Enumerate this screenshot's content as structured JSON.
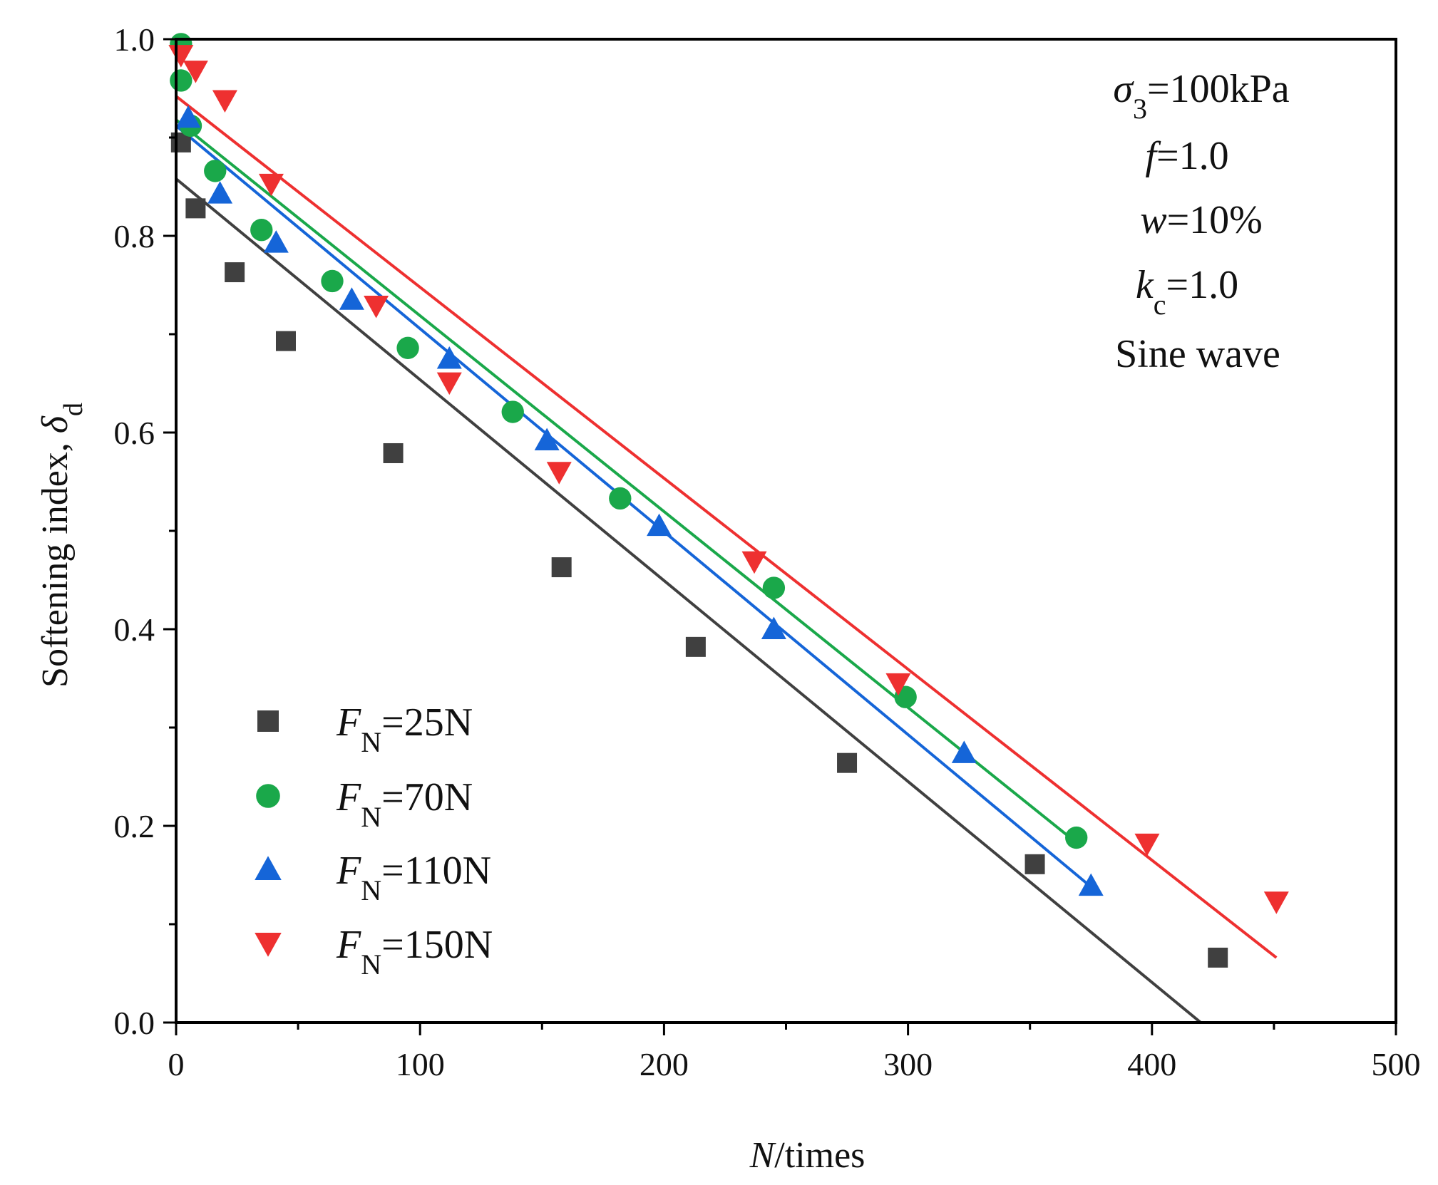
{
  "chart_data": {
    "type": "scatter",
    "title": "",
    "xlabel": {
      "italic": "N",
      "rest": "/times"
    },
    "ylabel": {
      "text": "Softening index, ",
      "symbol": "δ",
      "sub": "d"
    },
    "xlim": [
      0,
      500
    ],
    "ylim": [
      0,
      1.0
    ],
    "xticks": [
      0,
      100,
      200,
      300,
      400,
      500
    ],
    "xtick_labels": [
      "0",
      "100",
      "200",
      "300",
      "400",
      "500"
    ],
    "yticks": [
      0,
      0.2,
      0.4,
      0.6,
      0.8,
      1.0
    ],
    "ytick_labels": [
      "0.0",
      "0.2",
      "0.4",
      "0.6",
      "0.8",
      "1.0"
    ],
    "grid": false,
    "legend_position": "bottom-left",
    "annotations": [
      {
        "italic": "σ",
        "sub": "3",
        "rest": "=100kPa"
      },
      {
        "italic": "f",
        "sub": "",
        "rest": "=1.0"
      },
      {
        "italic": "w",
        "sub": "",
        "rest": "=10%"
      },
      {
        "italic": "k",
        "sub": "c",
        "rest": "=1.0"
      },
      {
        "italic": "",
        "sub": "",
        "rest": "Sine wave"
      }
    ],
    "series": [
      {
        "name": "FN=25N",
        "label_italic": "F",
        "label_sub": "N",
        "label_rest": "=25N",
        "marker": "square",
        "color": "#404040",
        "points": [
          [
            2,
            0.895
          ],
          [
            8,
            0.828
          ],
          [
            24,
            0.763
          ],
          [
            45,
            0.693
          ],
          [
            89,
            0.579
          ],
          [
            158,
            0.463
          ],
          [
            213,
            0.382
          ],
          [
            275,
            0.264
          ],
          [
            352,
            0.161
          ],
          [
            427,
            0.066
          ]
        ],
        "fit": {
          "x": [
            0,
            420
          ],
          "y": [
            0.858,
            0.0
          ]
        }
      },
      {
        "name": "FN=70N",
        "label_italic": "F",
        "label_sub": "N",
        "label_rest": "=70N",
        "marker": "circle",
        "color": "#1aa84a",
        "points": [
          [
            2,
            0.995
          ],
          [
            2,
            0.958
          ],
          [
            6,
            0.912
          ],
          [
            16,
            0.866
          ],
          [
            35,
            0.806
          ],
          [
            64,
            0.754
          ],
          [
            95,
            0.686
          ],
          [
            138,
            0.621
          ],
          [
            182,
            0.533
          ],
          [
            245,
            0.442
          ],
          [
            299,
            0.331
          ],
          [
            369,
            0.188
          ]
        ],
        "fit": {
          "x": [
            0,
            369
          ],
          "y": [
            0.918,
            0.183
          ]
        }
      },
      {
        "name": "FN=110N",
        "label_italic": "F",
        "label_sub": "N",
        "label_rest": "=110N",
        "marker": "triangle-up",
        "color": "#1565d8",
        "points": [
          [
            5,
            0.92
          ],
          [
            18,
            0.843
          ],
          [
            41,
            0.793
          ],
          [
            72,
            0.735
          ],
          [
            112,
            0.675
          ],
          [
            152,
            0.592
          ],
          [
            198,
            0.505
          ],
          [
            245,
            0.4
          ],
          [
            323,
            0.274
          ],
          [
            375,
            0.139
          ]
        ],
        "fit": {
          "x": [
            0,
            375
          ],
          "y": [
            0.912,
            0.138
          ]
        }
      },
      {
        "name": "FN=150N",
        "label_italic": "F",
        "label_sub": "N",
        "label_rest": "=150N",
        "marker": "triangle-down",
        "color": "#ee3030",
        "points": [
          [
            2,
            0.984
          ],
          [
            8,
            0.968
          ],
          [
            20,
            0.938
          ],
          [
            39,
            0.853
          ],
          [
            82,
            0.729
          ],
          [
            112,
            0.651
          ],
          [
            157,
            0.56
          ],
          [
            237,
            0.469
          ],
          [
            296,
            0.345
          ],
          [
            398,
            0.182
          ],
          [
            451,
            0.123
          ]
        ],
        "fit": {
          "x": [
            0,
            451
          ],
          "y": [
            0.942,
            0.066
          ]
        }
      }
    ]
  }
}
